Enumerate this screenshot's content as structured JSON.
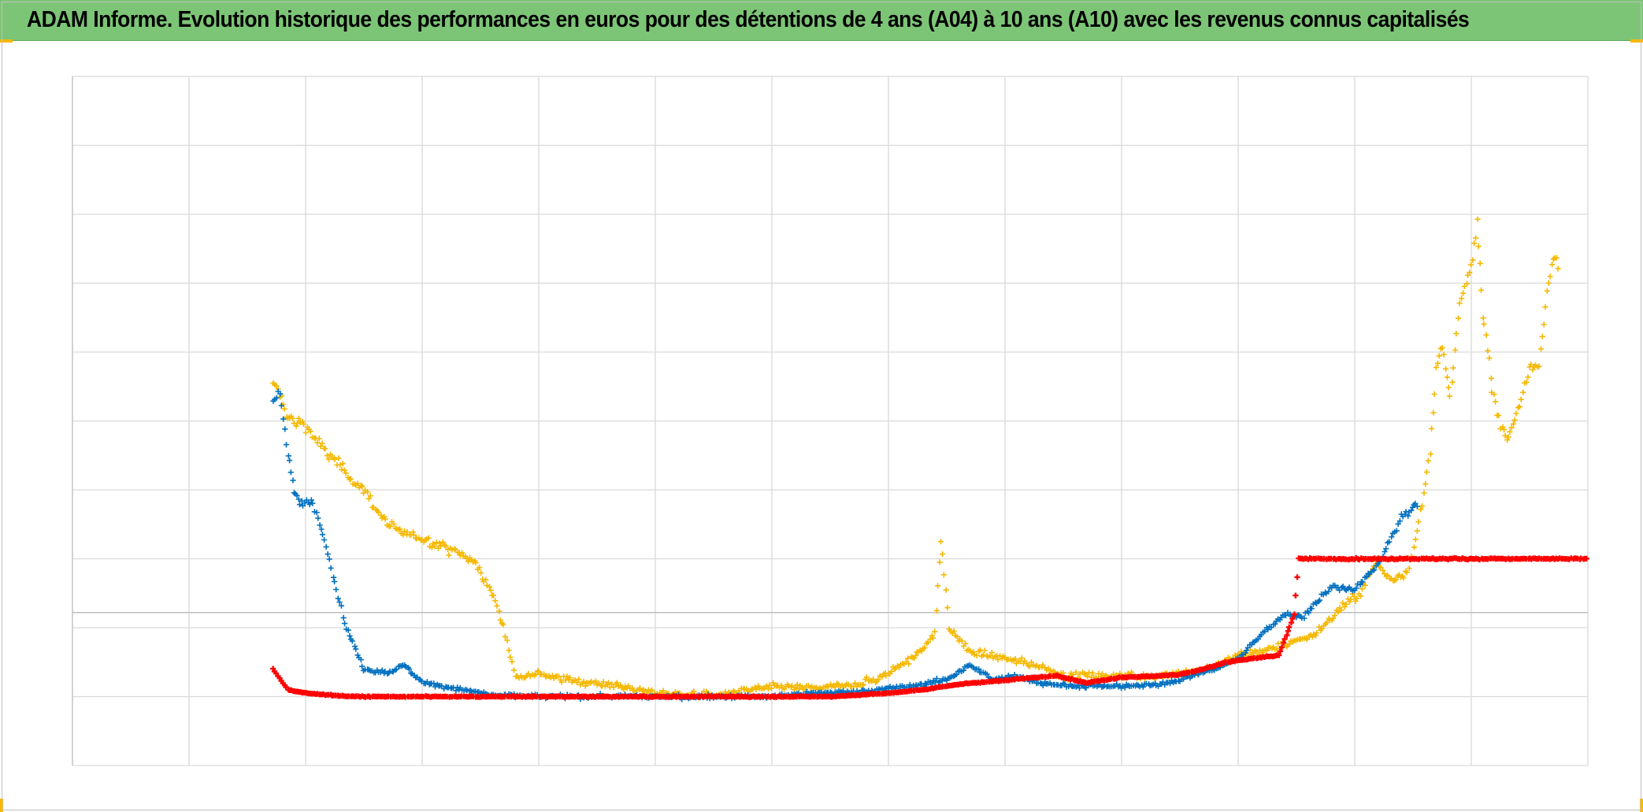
{
  "title": "ADAM Informe. Evolution historique des performances en euros pour des détentions de 4 ans (A04) à 10 ans (A10) avec les revenus connus capitalisés",
  "colors": {
    "header_bg": "#7cc576",
    "corner_marks": "#f5b800",
    "gridline": "#d9d9d9",
    "axis_line": "#bfbfbf"
  },
  "chart_data": {
    "type": "scatter",
    "marker": "plus",
    "title": "ADAM Informe. Evolution historique des performances en euros pour des détentions de 4 ans (A04) à 10 ans (A10) avec les revenus connus capitalisés",
    "xlabel": "",
    "ylabel": "",
    "xlim": [
      0,
      13
    ],
    "ylim": [
      -1,
      9
    ],
    "x_gridlines": [
      0,
      1,
      2,
      3,
      4,
      5,
      6,
      7,
      8,
      9,
      10,
      11,
      12,
      13
    ],
    "y_gridlines": [
      -1,
      0,
      1,
      2,
      3,
      4,
      5,
      6,
      7,
      8,
      9
    ],
    "reference_line_y": 1.22,
    "tick_labels_visible": false,
    "legend": "none",
    "grid": true,
    "series": [
      {
        "color": "#f5b800",
        "points": [
          [
            1.72,
            4.5
          ],
          [
            1.78,
            4.4
          ],
          [
            1.85,
            4.05
          ],
          [
            1.9,
            4.0
          ],
          [
            2.0,
            3.95
          ],
          [
            2.1,
            3.7
          ],
          [
            2.2,
            3.5
          ],
          [
            2.35,
            3.25
          ],
          [
            2.5,
            3.0
          ],
          [
            2.7,
            2.5
          ],
          [
            2.85,
            2.35
          ],
          [
            3.0,
            2.3
          ],
          [
            3.15,
            2.2
          ],
          [
            3.3,
            2.1
          ],
          [
            3.45,
            1.95
          ],
          [
            3.6,
            1.5
          ],
          [
            3.7,
            1.0
          ],
          [
            3.8,
            0.3
          ],
          [
            4.0,
            0.35
          ],
          [
            4.2,
            0.25
          ],
          [
            4.6,
            0.18
          ],
          [
            5.0,
            0.05
          ],
          [
            5.5,
            0.02
          ],
          [
            6.05,
            0.15
          ],
          [
            6.3,
            0.12
          ],
          [
            6.6,
            0.15
          ],
          [
            6.9,
            0.25
          ],
          [
            7.15,
            0.5
          ],
          [
            7.3,
            0.7
          ],
          [
            7.4,
            0.9
          ],
          [
            7.45,
            2.3
          ],
          [
            7.52,
            1.0
          ],
          [
            7.7,
            0.65
          ],
          [
            8.0,
            0.55
          ],
          [
            8.3,
            0.45
          ],
          [
            8.5,
            0.3
          ],
          [
            8.75,
            0.3
          ],
          [
            9.0,
            0.3
          ],
          [
            9.3,
            0.3
          ],
          [
            9.5,
            0.35
          ],
          [
            9.65,
            0.35
          ],
          [
            9.8,
            0.45
          ],
          [
            10.0,
            0.6
          ],
          [
            10.3,
            0.7
          ],
          [
            10.65,
            0.9
          ],
          [
            10.9,
            1.3
          ],
          [
            11.05,
            1.5
          ],
          [
            11.18,
            1.95
          ],
          [
            11.3,
            1.7
          ],
          [
            11.45,
            1.8
          ],
          [
            11.55,
            2.5
          ],
          [
            11.65,
            3.5
          ],
          [
            11.7,
            4.8
          ],
          [
            11.75,
            5.05
          ],
          [
            11.82,
            4.3
          ],
          [
            11.9,
            5.7
          ],
          [
            12.0,
            6.2
          ],
          [
            12.05,
            6.9
          ],
          [
            12.1,
            5.6
          ],
          [
            12.18,
            4.5
          ],
          [
            12.25,
            3.95
          ],
          [
            12.32,
            3.75
          ],
          [
            12.4,
            4.2
          ],
          [
            12.5,
            4.7
          ],
          [
            12.58,
            4.8
          ],
          [
            12.65,
            5.9
          ],
          [
            12.72,
            6.5
          ],
          [
            12.76,
            6.1
          ]
        ]
      },
      {
        "color": "#0070c0",
        "points": [
          [
            1.72,
            4.3
          ],
          [
            1.78,
            4.4
          ],
          [
            1.85,
            3.5
          ],
          [
            1.9,
            3.0
          ],
          [
            1.95,
            2.8
          ],
          [
            2.05,
            2.85
          ],
          [
            2.15,
            2.4
          ],
          [
            2.25,
            1.65
          ],
          [
            2.35,
            1.0
          ],
          [
            2.5,
            0.4
          ],
          [
            2.7,
            0.35
          ],
          [
            2.85,
            0.45
          ],
          [
            3.0,
            0.2
          ],
          [
            3.3,
            0.12
          ],
          [
            3.6,
            0.02
          ],
          [
            4.0,
            0.0
          ],
          [
            4.5,
            0.0
          ],
          [
            5.0,
            0.0
          ],
          [
            5.5,
            0.0
          ],
          [
            6.0,
            0.0
          ],
          [
            6.4,
            0.05
          ],
          [
            6.8,
            0.08
          ],
          [
            7.2,
            0.15
          ],
          [
            7.5,
            0.25
          ],
          [
            7.7,
            0.45
          ],
          [
            7.9,
            0.25
          ],
          [
            8.1,
            0.3
          ],
          [
            8.3,
            0.2
          ],
          [
            8.6,
            0.15
          ],
          [
            9.0,
            0.15
          ],
          [
            9.3,
            0.17
          ],
          [
            9.5,
            0.25
          ],
          [
            9.8,
            0.4
          ],
          [
            10.0,
            0.55
          ],
          [
            10.2,
            0.9
          ],
          [
            10.4,
            1.2
          ],
          [
            10.55,
            1.15
          ],
          [
            10.8,
            1.6
          ],
          [
            11.0,
            1.55
          ],
          [
            11.2,
            1.9
          ],
          [
            11.4,
            2.6
          ],
          [
            11.55,
            2.8
          ]
        ]
      },
      {
        "color": "#ff0000",
        "points": [
          [
            1.72,
            0.4
          ],
          [
            1.85,
            0.1
          ],
          [
            2.0,
            0.05
          ],
          [
            2.4,
            0.0
          ],
          [
            3.0,
            0.0
          ],
          [
            4.0,
            0.0
          ],
          [
            5.0,
            0.0
          ],
          [
            6.0,
            0.0
          ],
          [
            6.5,
            0.0
          ],
          [
            7.0,
            0.05
          ],
          [
            7.3,
            0.1
          ],
          [
            7.6,
            0.18
          ],
          [
            7.9,
            0.22
          ],
          [
            8.2,
            0.27
          ],
          [
            8.45,
            0.3
          ],
          [
            8.7,
            0.2
          ],
          [
            9.0,
            0.28
          ],
          [
            9.3,
            0.3
          ],
          [
            9.5,
            0.32
          ],
          [
            9.7,
            0.4
          ],
          [
            9.9,
            0.5
          ],
          [
            10.1,
            0.55
          ],
          [
            10.35,
            0.6
          ],
          [
            10.43,
            0.95
          ],
          [
            10.48,
            1.2
          ],
          [
            10.52,
            2.0
          ],
          [
            10.6,
            2.0
          ],
          [
            11.0,
            2.0
          ],
          [
            11.5,
            2.0
          ],
          [
            12.0,
            2.0
          ],
          [
            12.5,
            2.0
          ],
          [
            13.0,
            2.0
          ]
        ]
      }
    ]
  }
}
